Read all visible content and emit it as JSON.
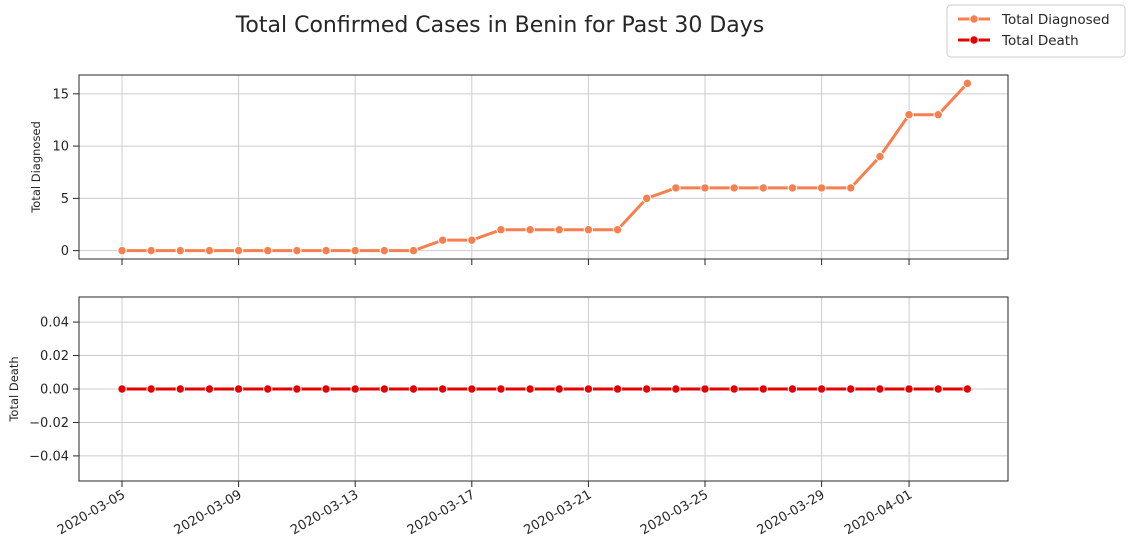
{
  "chart_data": {
    "type": "line",
    "title": "Total Confirmed Cases in Benin for Past 30 Days",
    "x": [
      "2020-03-05",
      "2020-03-06",
      "2020-03-07",
      "2020-03-08",
      "2020-03-09",
      "2020-03-10",
      "2020-03-11",
      "2020-03-12",
      "2020-03-13",
      "2020-03-14",
      "2020-03-15",
      "2020-03-16",
      "2020-03-17",
      "2020-03-18",
      "2020-03-19",
      "2020-03-20",
      "2020-03-21",
      "2020-03-22",
      "2020-03-23",
      "2020-03-24",
      "2020-03-25",
      "2020-03-26",
      "2020-03-27",
      "2020-03-28",
      "2020-03-29",
      "2020-03-30",
      "2020-03-31",
      "2020-04-01",
      "2020-04-02",
      "2020-04-03"
    ],
    "xticks": [
      "2020-03-05",
      "2020-03-09",
      "2020-03-13",
      "2020-03-17",
      "2020-03-21",
      "2020-03-25",
      "2020-03-29",
      "2020-04-01"
    ],
    "grid": true,
    "legend_position": "top-right",
    "panels": [
      {
        "ylabel": "Total Diagnosed",
        "ylim": [
          -0.8,
          16.8
        ],
        "yticks": [
          0,
          5,
          10,
          15
        ],
        "ytick_labels": [
          "0",
          "5",
          "10",
          "15"
        ],
        "series": [
          {
            "name": "Total Diagnosed",
            "color": "#f77f4f",
            "values": [
              0,
              0,
              0,
              0,
              0,
              0,
              0,
              0,
              0,
              0,
              0,
              1,
              1,
              2,
              2,
              2,
              2,
              2,
              5,
              6,
              6,
              6,
              6,
              6,
              6,
              6,
              9,
              13,
              13,
              16
            ]
          }
        ]
      },
      {
        "ylabel": "Total Death",
        "ylim": [
          -0.055,
          0.055
        ],
        "yticks": [
          -0.04,
          -0.02,
          0.0,
          0.02,
          0.04
        ],
        "ytick_labels": [
          "−0.04",
          "−0.02",
          "0.00",
          "0.02",
          "0.04"
        ],
        "series": [
          {
            "name": "Total Death",
            "color": "#e50000",
            "values": [
              0,
              0,
              0,
              0,
              0,
              0,
              0,
              0,
              0,
              0,
              0,
              0,
              0,
              0,
              0,
              0,
              0,
              0,
              0,
              0,
              0,
              0,
              0,
              0,
              0,
              0,
              0,
              0,
              0,
              0
            ]
          }
        ]
      }
    ],
    "legend": [
      {
        "label": "Total Diagnosed",
        "color": "#f77f4f"
      },
      {
        "label": "Total Death",
        "color": "#e50000"
      }
    ]
  }
}
